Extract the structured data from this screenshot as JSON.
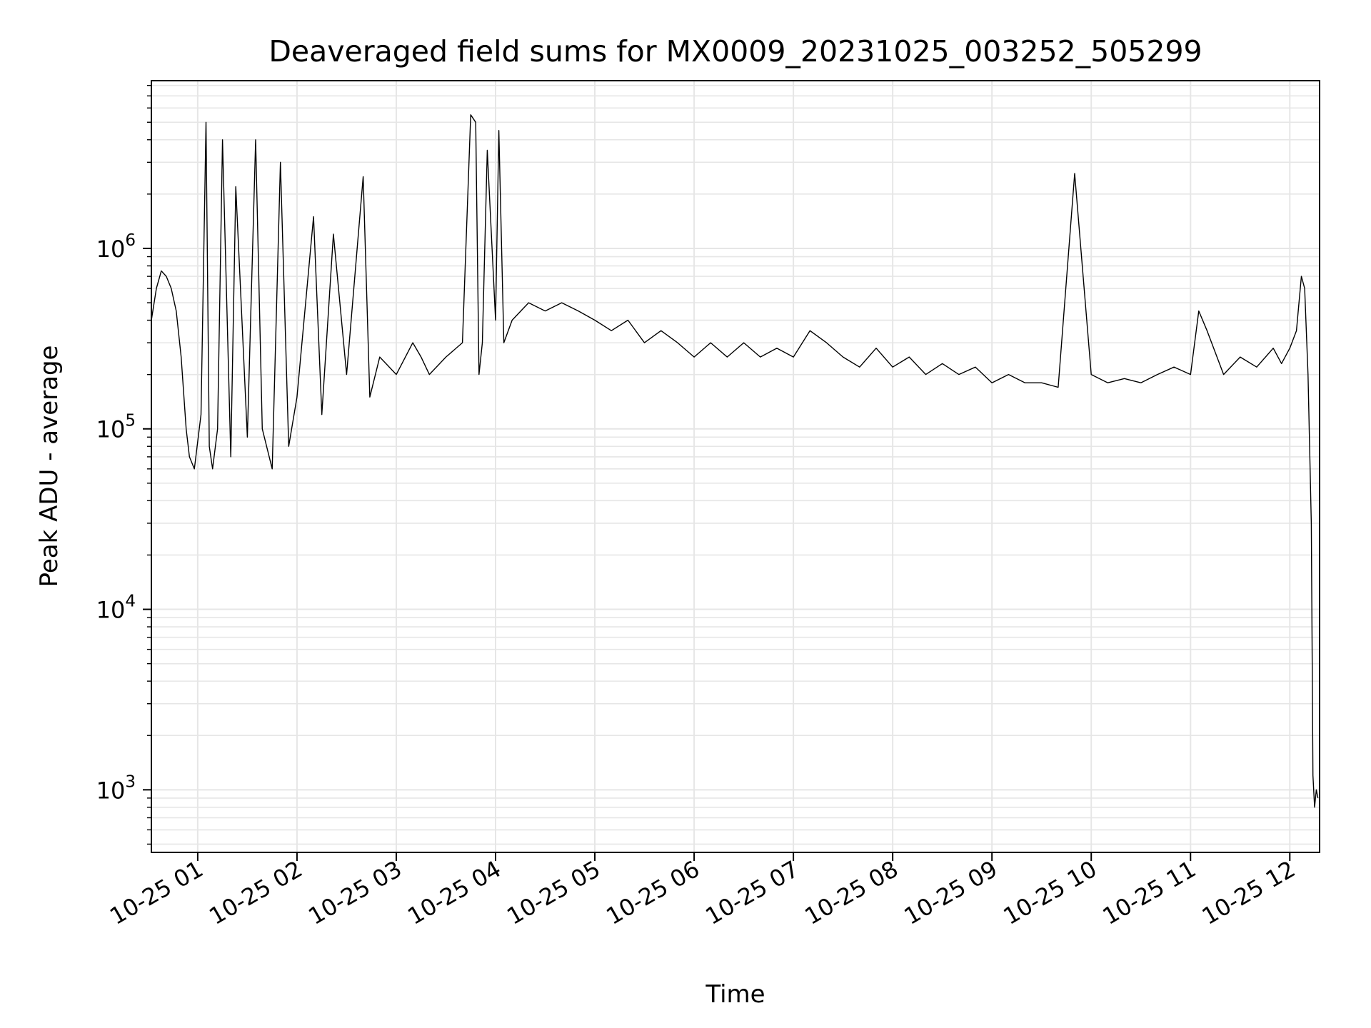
{
  "chart_data": {
    "type": "line",
    "title": "Deaveraged field sums for MX0009_20231025_003252_505299",
    "xlabel": "Time",
    "ylabel": "Peak ADU - average",
    "yscale": "log",
    "grid": true,
    "line_color": "#000000",
    "grid_color": "#e6e6e6",
    "xlim": [
      "2023-10-25 00:32",
      "2023-10-25 12:18"
    ],
    "ylim": [
      450,
      8500000
    ],
    "x_ticks": [
      {
        "value": "2023-10-25 01:00",
        "label": "10-25 01"
      },
      {
        "value": "2023-10-25 02:00",
        "label": "10-25 02"
      },
      {
        "value": "2023-10-25 03:00",
        "label": "10-25 03"
      },
      {
        "value": "2023-10-25 04:00",
        "label": "10-25 04"
      },
      {
        "value": "2023-10-25 05:00",
        "label": "10-25 05"
      },
      {
        "value": "2023-10-25 06:00",
        "label": "10-25 06"
      },
      {
        "value": "2023-10-25 07:00",
        "label": "10-25 07"
      },
      {
        "value": "2023-10-25 08:00",
        "label": "10-25 08"
      },
      {
        "value": "2023-10-25 09:00",
        "label": "10-25 09"
      },
      {
        "value": "2023-10-25 10:00",
        "label": "10-25 10"
      },
      {
        "value": "2023-10-25 11:00",
        "label": "10-25 11"
      },
      {
        "value": "2023-10-25 12:00",
        "label": "10-25 12"
      }
    ],
    "y_ticks": [
      {
        "value": 1000,
        "base": "10",
        "exp": "3"
      },
      {
        "value": 10000,
        "base": "10",
        "exp": "4"
      },
      {
        "value": 100000,
        "base": "10",
        "exp": "5"
      },
      {
        "value": 1000000,
        "base": "10",
        "exp": "6"
      }
    ],
    "series": [
      {
        "x": [
          "2023-10-25 00:32",
          "2023-10-25 00:35",
          "2023-10-25 00:38",
          "2023-10-25 00:41",
          "2023-10-25 00:44",
          "2023-10-25 00:47",
          "2023-10-25 00:50",
          "2023-10-25 00:53",
          "2023-10-25 00:55",
          "2023-10-25 00:58",
          "2023-10-25 01:02",
          "2023-10-25 01:05",
          "2023-10-25 01:07",
          "2023-10-25 01:09",
          "2023-10-25 01:12",
          "2023-10-25 01:15",
          "2023-10-25 01:20",
          "2023-10-25 01:23",
          "2023-10-25 01:30",
          "2023-10-25 01:35",
          "2023-10-25 01:39",
          "2023-10-25 01:45",
          "2023-10-25 01:50",
          "2023-10-25 01:55",
          "2023-10-25 02:00",
          "2023-10-25 02:10",
          "2023-10-25 02:15",
          "2023-10-25 02:22",
          "2023-10-25 02:30",
          "2023-10-25 02:40",
          "2023-10-25 02:44",
          "2023-10-25 02:50",
          "2023-10-25 03:00",
          "2023-10-25 03:10",
          "2023-10-25 03:15",
          "2023-10-25 03:20",
          "2023-10-25 03:30",
          "2023-10-25 03:40",
          "2023-10-25 03:45",
          "2023-10-25 03:48",
          "2023-10-25 03:50",
          "2023-10-25 03:52",
          "2023-10-25 03:55",
          "2023-10-25 04:00",
          "2023-10-25 04:02",
          "2023-10-25 04:05",
          "2023-10-25 04:10",
          "2023-10-25 04:20",
          "2023-10-25 04:30",
          "2023-10-25 04:40",
          "2023-10-25 04:50",
          "2023-10-25 05:00",
          "2023-10-25 05:10",
          "2023-10-25 05:20",
          "2023-10-25 05:30",
          "2023-10-25 05:40",
          "2023-10-25 05:50",
          "2023-10-25 06:00",
          "2023-10-25 06:10",
          "2023-10-25 06:20",
          "2023-10-25 06:30",
          "2023-10-25 06:40",
          "2023-10-25 06:50",
          "2023-10-25 07:00",
          "2023-10-25 07:10",
          "2023-10-25 07:20",
          "2023-10-25 07:30",
          "2023-10-25 07:40",
          "2023-10-25 07:50",
          "2023-10-25 08:00",
          "2023-10-25 08:10",
          "2023-10-25 08:20",
          "2023-10-25 08:30",
          "2023-10-25 08:40",
          "2023-10-25 08:50",
          "2023-10-25 09:00",
          "2023-10-25 09:10",
          "2023-10-25 09:20",
          "2023-10-25 09:30",
          "2023-10-25 09:40",
          "2023-10-25 09:50",
          "2023-10-25 10:00",
          "2023-10-25 10:10",
          "2023-10-25 10:20",
          "2023-10-25 10:30",
          "2023-10-25 10:40",
          "2023-10-25 10:50",
          "2023-10-25 11:00",
          "2023-10-25 11:05",
          "2023-10-25 11:10",
          "2023-10-25 11:20",
          "2023-10-25 11:30",
          "2023-10-25 11:40",
          "2023-10-25 11:50",
          "2023-10-25 11:55",
          "2023-10-25 12:00",
          "2023-10-25 12:04",
          "2023-10-25 12:07",
          "2023-10-25 12:09",
          "2023-10-25 12:11",
          "2023-10-25 12:13",
          "2023-10-25 12:14",
          "2023-10-25 12:15",
          "2023-10-25 12:16",
          "2023-10-25 12:17"
        ],
        "y": [
          400000,
          600000,
          750000,
          700000,
          600000,
          450000,
          250000,
          100000,
          70000,
          60000,
          120000,
          5000000,
          80000,
          60000,
          100000,
          4000000,
          70000,
          2200000,
          90000,
          4000000,
          100000,
          60000,
          3000000,
          80000,
          150000,
          1500000,
          120000,
          1200000,
          200000,
          2500000,
          150000,
          250000,
          200000,
          300000,
          250000,
          200000,
          250000,
          300000,
          5500000,
          5000000,
          200000,
          300000,
          3500000,
          400000,
          4500000,
          300000,
          400000,
          500000,
          450000,
          500000,
          450000,
          400000,
          350000,
          400000,
          300000,
          350000,
          300000,
          250000,
          300000,
          250000,
          300000,
          250000,
          280000,
          250000,
          350000,
          300000,
          250000,
          220000,
          280000,
          220000,
          250000,
          200000,
          230000,
          200000,
          220000,
          180000,
          200000,
          180000,
          180000,
          170000,
          2600000,
          200000,
          180000,
          190000,
          180000,
          200000,
          220000,
          200000,
          450000,
          350000,
          200000,
          250000,
          220000,
          280000,
          230000,
          280000,
          350000,
          700000,
          600000,
          200000,
          30000,
          1200,
          800,
          1000,
          900
        ]
      }
    ]
  }
}
